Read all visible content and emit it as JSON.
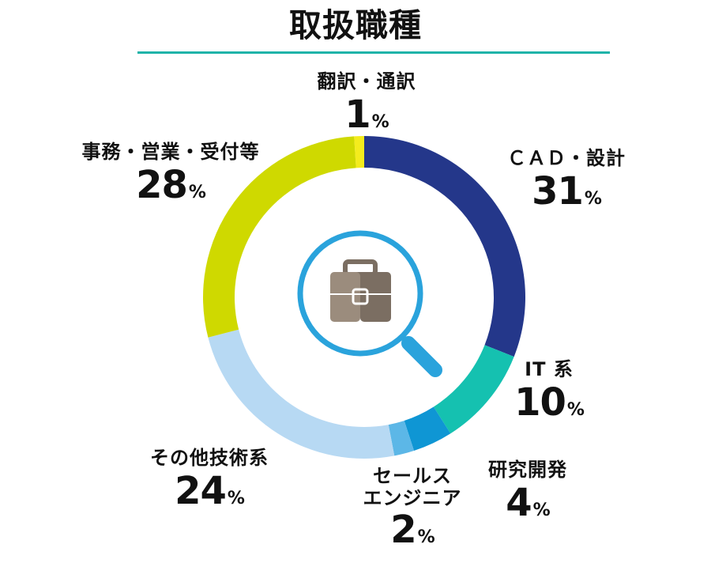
{
  "chart_data": {
    "type": "pie",
    "title": "取扱職種",
    "slices": [
      {
        "label": "翻訳・通訳",
        "value": 1,
        "color": "#f4ec1d"
      },
      {
        "label": "CAD・設計",
        "value": 31,
        "color": "#24378a"
      },
      {
        "label": "IT系",
        "value": 10,
        "color": "#15c1b0"
      },
      {
        "label": "研究開発",
        "value": 4,
        "color": "#0f96d4"
      },
      {
        "label": "セールスエンジニア",
        "value": 2,
        "color": "#5cb7e7"
      },
      {
        "label": "その他技術系",
        "value": 24,
        "color": "#b7d9f3"
      },
      {
        "label": "事務・営業・受付等",
        "value": 28,
        "color": "#cfd900"
      }
    ],
    "unit": "%"
  },
  "labels": {
    "honyaku": {
      "name": "翻訳・通訳",
      "value": "1"
    },
    "cad": {
      "name": "ＣＡＤ・設計",
      "value": "31"
    },
    "it": {
      "name": "IT 系",
      "value": "10"
    },
    "kenkyu": {
      "name": "研究開発",
      "value": "4"
    },
    "sales": {
      "name1": "セールス",
      "name2": "エンジニア",
      "value": "2"
    },
    "sonota": {
      "name": "その他技術系",
      "value": "24"
    },
    "jimu": {
      "name": "事務・営業・受付等",
      "value": "28"
    },
    "percent_sign": "%"
  },
  "colors": {
    "title_rule": "#1fb3a9",
    "magnifier": "#2aa3dc",
    "briefcase_dark": "#7b6e62",
    "briefcase_light": "#9b8c7d"
  },
  "icons": {
    "center": "briefcase-magnifier-icon"
  }
}
